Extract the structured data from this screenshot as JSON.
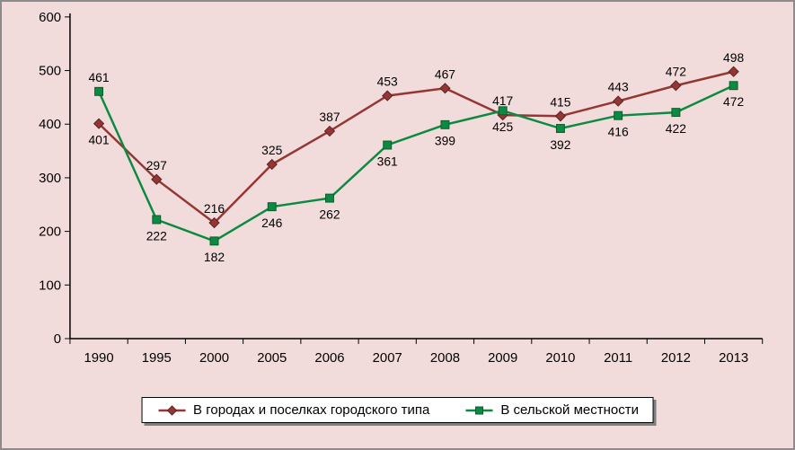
{
  "chart_data": {
    "type": "line",
    "title": "",
    "xlabel": "",
    "ylabel": "",
    "categories": [
      "1990",
      "1995",
      "2000",
      "2005",
      "2006",
      "2007",
      "2008",
      "2009",
      "2010",
      "2011",
      "2012",
      "2013"
    ],
    "series": [
      {
        "name": "В городах и поселках городского типа",
        "values": [
          401,
          297,
          216,
          325,
          387,
          453,
          467,
          417,
          415,
          443,
          472,
          498
        ],
        "color": "#943634",
        "marker_edge": "#5e2321",
        "marker": "diamond",
        "label_positions": [
          "below",
          "above",
          "above",
          "above",
          "above",
          "above",
          "above",
          "above",
          "above",
          "above",
          "above",
          "above"
        ]
      },
      {
        "name": "В сельской местности",
        "values": [
          461,
          222,
          182,
          246,
          262,
          361,
          399,
          425,
          392,
          416,
          422,
          472
        ],
        "color": "#0c8a42",
        "marker_edge": "#0a5c2c",
        "marker": "square",
        "label_positions": [
          "above",
          "below",
          "below",
          "below",
          "below",
          "below",
          "below",
          "below",
          "below",
          "below",
          "below",
          "below"
        ]
      }
    ],
    "ylim": [
      0,
      600
    ],
    "ytick_step": 100,
    "yticks": [
      "0",
      "100",
      "200",
      "300",
      "400",
      "500",
      "600"
    ],
    "grid": false,
    "legend_position": "bottom",
    "background_color": "#f2dcdb",
    "axis_color": "#000000",
    "label_color": "#000000"
  }
}
